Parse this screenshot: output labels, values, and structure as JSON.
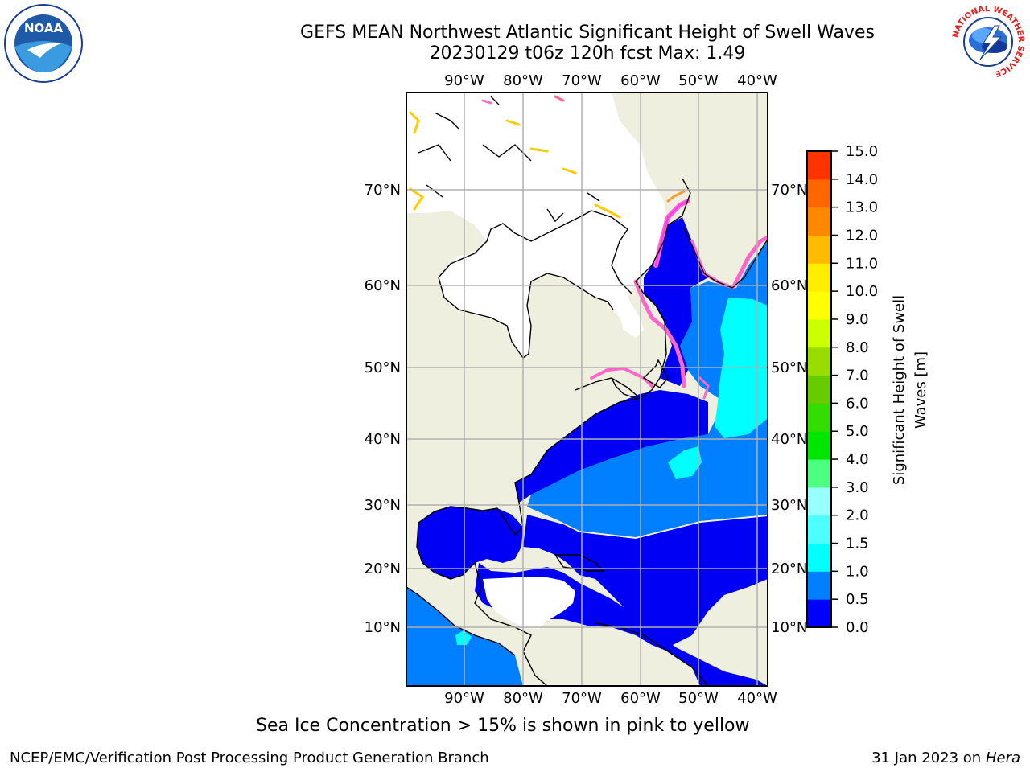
{
  "header": {
    "title_line1": "GEFS MEAN Northwest Atlantic Significant Height of Swell Waves",
    "title_line2": "20230129 t06z 120h fcst   Max: 1.49"
  },
  "logos": {
    "noaa_text": "NOAA",
    "nws_ring_text": "NATIONAL WEATHER SERVICE"
  },
  "map": {
    "top_lon_labels": [
      "90°W",
      "80°W",
      "70°W",
      "60°W",
      "50°W",
      "40°W"
    ],
    "bottom_lon_labels": [
      "90°W",
      "80°W",
      "70°W",
      "60°W",
      "50°W",
      "40°W"
    ],
    "lat_labels": [
      "70°N",
      "60°N",
      "50°N",
      "40°N",
      "30°N",
      "20°N",
      "10°N"
    ],
    "colors": {
      "land": "#efefdf",
      "ice_free_ocean": "#ffffff",
      "deep_blue": "#0000f5",
      "mid_blue": "#0080ff",
      "cyan": "#00ffff",
      "ice_pink": "#ff66cc",
      "ice_magenta": "#ff33ff",
      "ice_yellow": "#ffcc00"
    }
  },
  "colorbar": {
    "title": "Significant Height of Swell\nWaves [m]",
    "title_line1": "Significant Height of Swell",
    "title_line2": "Waves [m]",
    "ticks": [
      "0.0",
      "0.5",
      "1.0",
      "1.5",
      "2.0",
      "3.0",
      "4.0",
      "5.0",
      "6.0",
      "7.0",
      "8.0",
      "9.0",
      "10.0",
      "11.0",
      "12.0",
      "13.0",
      "14.0",
      "15.0"
    ],
    "colors": [
      "#0000ff",
      "#0080ff",
      "#00ffff",
      "#4dffff",
      "#99ffff",
      "#4dff80",
      "#00e600",
      "#33dd00",
      "#66cc00",
      "#99dd00",
      "#ccff00",
      "#ffff00",
      "#ffee00",
      "#ffbb00",
      "#ff8800",
      "#ff6600",
      "#ff3300",
      "#ff0000"
    ]
  },
  "footnote": "Sea Ice Concentration > 15% is shown in pink to yellow",
  "footer": {
    "left": "NCEP/EMC/Verification Post Processing Product Generation Branch",
    "right_prefix": "31 Jan 2023 on ",
    "right_host": "Hera"
  }
}
